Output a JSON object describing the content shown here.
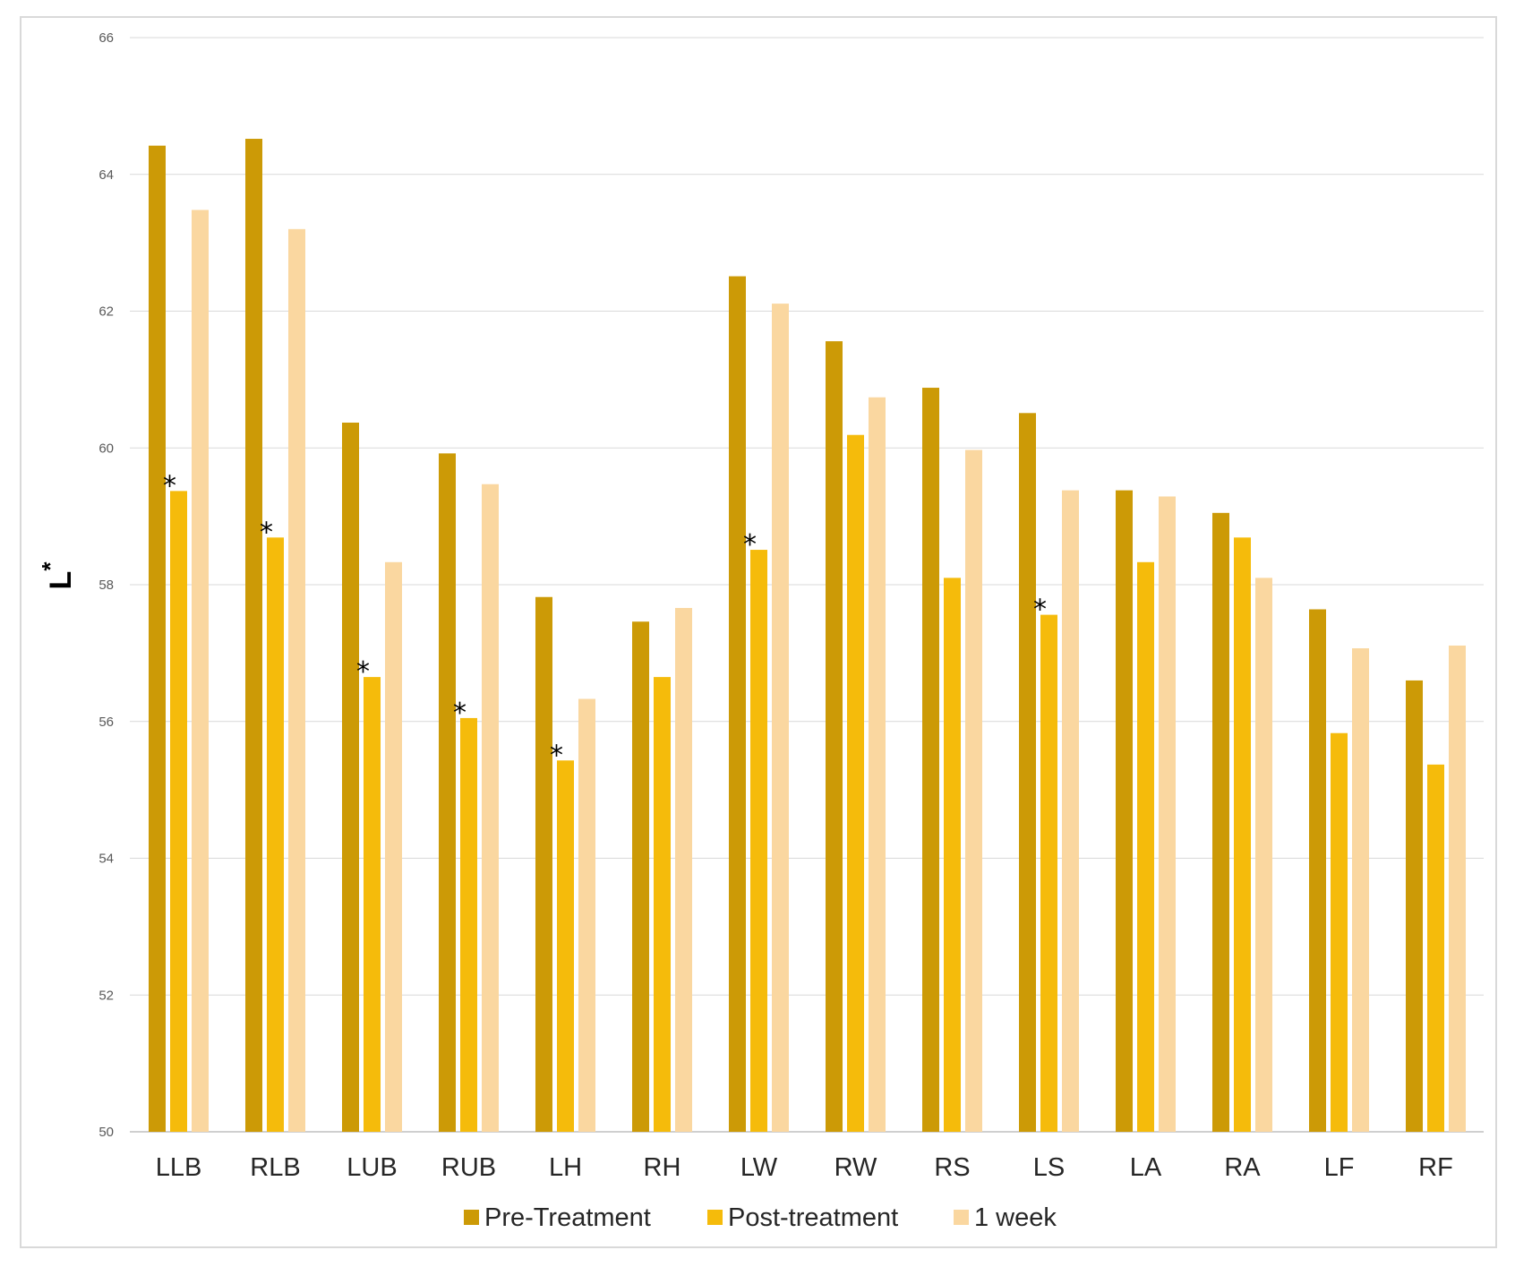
{
  "chart_data": {
    "type": "bar",
    "title": "",
    "xlabel": "",
    "ylabel": "L",
    "ylabel_superscript": "*",
    "ylim": [
      50,
      66
    ],
    "yticks": [
      50,
      52,
      54,
      56,
      58,
      60,
      62,
      64,
      66
    ],
    "grid": true,
    "legend_position": "bottom",
    "categories": [
      "LLB",
      "RLB",
      "LUB",
      "RUB",
      "LH",
      "RH",
      "LW",
      "RW",
      "RS",
      "LS",
      "LA",
      "RA",
      "LF",
      "RF"
    ],
    "series": [
      {
        "name": "Pre-Treatment",
        "color": "#cc9a06",
        "values": [
          64.42,
          64.52,
          60.37,
          59.92,
          57.82,
          57.46,
          62.51,
          61.56,
          60.88,
          60.51,
          59.38,
          59.05,
          57.64,
          56.6
        ]
      },
      {
        "name": "Post-treatment",
        "color": "#f5bb0b",
        "values": [
          59.37,
          58.69,
          56.65,
          56.05,
          55.43,
          56.65,
          58.51,
          60.19,
          58.1,
          57.56,
          58.33,
          58.69,
          55.83,
          55.37
        ]
      },
      {
        "name": "1 week",
        "color": "#fad7a0",
        "values": [
          63.48,
          63.2,
          58.33,
          59.47,
          56.33,
          57.66,
          62.11,
          60.74,
          59.97,
          59.38,
          59.29,
          58.1,
          57.07,
          57.11
        ]
      }
    ],
    "annotations": [
      {
        "text": "*",
        "category": "LLB",
        "series": "Post-treatment"
      },
      {
        "text": "*",
        "category": "RLB",
        "series": "Post-treatment"
      },
      {
        "text": "*",
        "category": "LUB",
        "series": "Post-treatment"
      },
      {
        "text": "*",
        "category": "RUB",
        "series": "Post-treatment"
      },
      {
        "text": "*",
        "category": "LH",
        "series": "Post-treatment"
      },
      {
        "text": "*",
        "category": "LW",
        "series": "Post-treatment"
      },
      {
        "text": "*",
        "category": "LS",
        "series": "Post-treatment"
      }
    ]
  }
}
